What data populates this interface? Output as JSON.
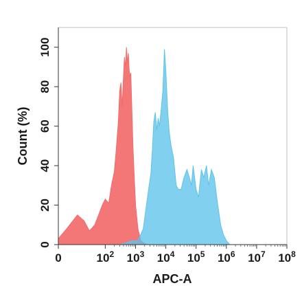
{
  "chart_data": {
    "type": "area",
    "xlabel": "APC-A",
    "ylabel": "Count (%)",
    "x_scale": "biexponential",
    "xlim": [
      0,
      100000000
    ],
    "ylim": [
      0,
      110
    ],
    "x_ticks": [
      {
        "value": 0,
        "label": "0",
        "sup": ""
      },
      {
        "value": 100,
        "label": "10",
        "sup": "2"
      },
      {
        "value": 1000,
        "label": "10",
        "sup": "3"
      },
      {
        "value": 10000,
        "label": "10",
        "sup": "4"
      },
      {
        "value": 100000,
        "label": "10",
        "sup": "5"
      },
      {
        "value": 1000000,
        "label": "10",
        "sup": "6"
      },
      {
        "value": 10000000,
        "label": "10",
        "sup": "7"
      },
      {
        "value": 100000000,
        "label": "10",
        "sup": "8"
      }
    ],
    "y_ticks": [
      0,
      20,
      40,
      60,
      80,
      100
    ],
    "grid": false,
    "series": [
      {
        "color": "#f26b6b",
        "x": [
          0,
          5,
          12,
          20,
          30,
          45,
          60,
          80,
          100,
          130,
          160,
          200,
          230,
          270,
          300,
          330,
          360,
          400,
          430,
          470,
          500,
          540,
          580,
          620,
          660,
          700,
          760,
          820,
          900,
          1000,
          1200,
          1500,
          2000,
          2500
        ],
        "y": [
          3,
          8,
          15,
          12,
          7,
          10,
          15,
          20,
          23,
          21,
          30,
          37,
          48,
          62,
          78,
          82,
          70,
          85,
          95,
          90,
          100,
          92,
          97,
          88,
          85,
          87,
          68,
          50,
          35,
          20,
          8,
          2,
          0.5,
          0
        ]
      },
      {
        "color": "#5ec3ea",
        "x": [
          300,
          500,
          800,
          1200,
          1800,
          2200,
          2700,
          3200,
          3600,
          4000,
          4500,
          5000,
          5600,
          6200,
          7000,
          8000,
          9000,
          10000,
          11500,
          13000,
          15000,
          18000,
          22000,
          26000,
          32000,
          40000,
          50000,
          60000,
          70000,
          80000,
          100000,
          120000,
          150000,
          180000,
          220000,
          260000,
          320000,
          400000,
          500000,
          650000,
          800000,
          1000000,
          1300000
        ],
        "y": [
          0,
          1,
          2,
          2,
          8,
          18,
          28,
          36,
          48,
          62,
          67,
          58,
          64,
          60,
          68,
          78,
          99,
          88,
          68,
          57,
          50,
          44,
          30,
          28,
          28,
          34,
          38,
          34,
          30,
          40,
          28,
          24,
          38,
          34,
          40,
          30,
          38,
          34,
          22,
          10,
          5,
          2,
          0
        ]
      }
    ]
  }
}
